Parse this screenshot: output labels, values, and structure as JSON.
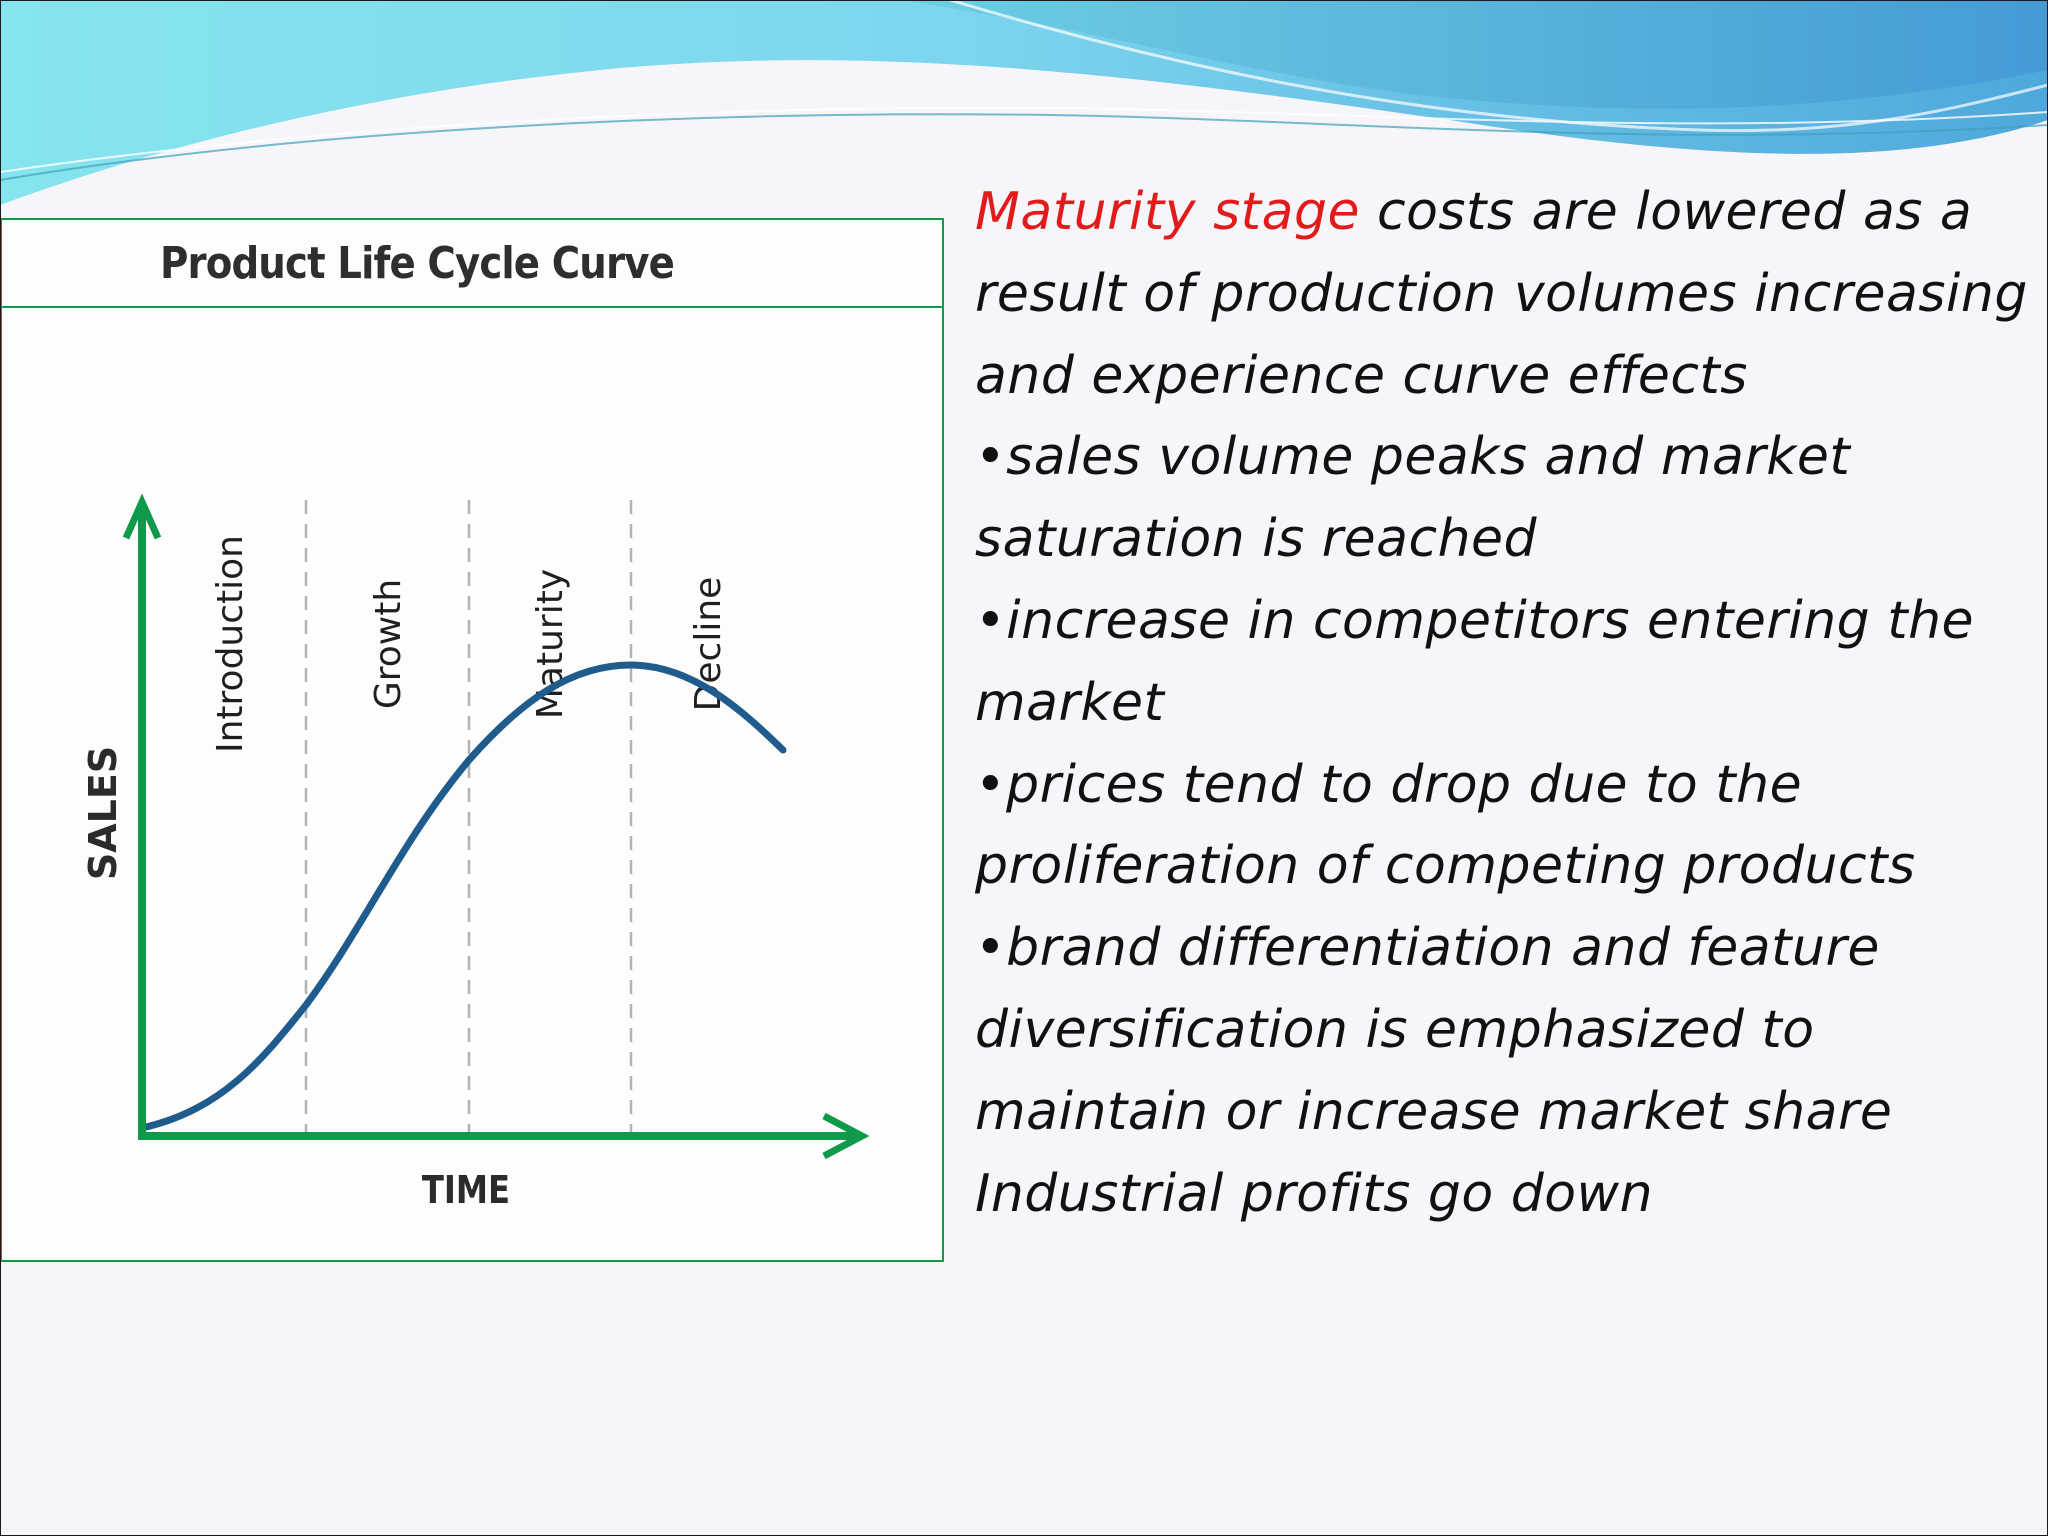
{
  "diagram": {
    "title": "Product Life Cycle Curve",
    "stages": [
      "Introduction",
      "Growth",
      "Maturity",
      "Decline"
    ],
    "x_axis_label": "TIME",
    "y_axis_label": "SALES",
    "colors": {
      "axis": "#0f9a4b",
      "curve": "#1f5b8c",
      "divider": "#b3b3b3",
      "frame": "#0f9a4b"
    },
    "curve_shape": "S-shaped rise through introduction and growth, peak at start of decline, falling in decline"
  },
  "text": {
    "intro_highlight": "Maturity stage",
    "intro_rest": " costs are lowered as a result of production volumes increasing and experience curve effects",
    "bullets": [
      "•sales volume peaks and market saturation is reached",
      "•increase in competitors entering the market",
      "•prices tend to drop due to the proliferation of competing products",
      "•brand differentiation and feature diversification is emphasized to maintain or increase market share"
    ],
    "closing": "Industrial profits go down",
    "highlight_color": "#e31a1a"
  }
}
